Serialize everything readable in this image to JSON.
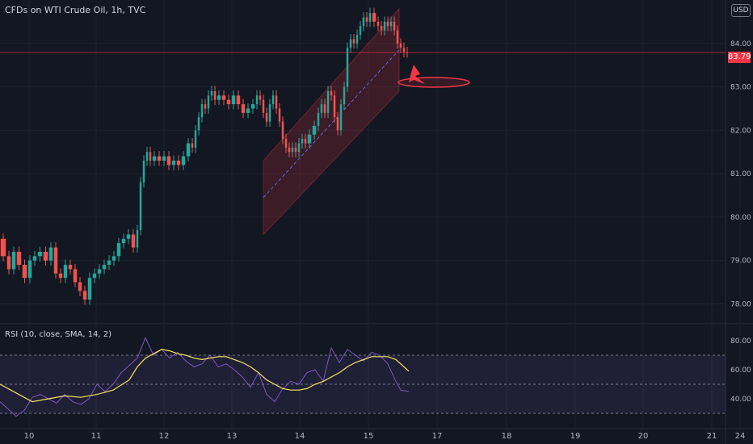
{
  "title": "CFDs on WTI Crude Oil, 1h, TVC",
  "currency": "USD",
  "last_price": "83.79",
  "rsi_label": "RSI (10, close, SMA, 14, 2)",
  "colors": {
    "background": "#131722",
    "up": "#26a69a",
    "down": "#ef5350",
    "rsi": "#7e57c2",
    "rsi_ma": "#f5e663",
    "grid": "#1e222d",
    "text": "#b2b5be",
    "accent": "#f23645"
  },
  "chart_data": [
    {
      "type": "candlestick",
      "ylim": [
        77.6,
        85.0
      ],
      "x_ticks": [
        "10",
        "11",
        "12",
        "13",
        "14",
        "15",
        "17",
        "18",
        "19",
        "20",
        "21",
        "24"
      ],
      "y_ticks": [
        "78.00",
        "79.00",
        "80.00",
        "81.00",
        "82.00",
        "83.00",
        "84.00"
      ],
      "last_price": 83.79,
      "path": [
        [
          0,
          79.5
        ],
        [
          8,
          79.1
        ],
        [
          14,
          78.8
        ],
        [
          20,
          79.2
        ],
        [
          27,
          78.9
        ],
        [
          34,
          78.6
        ],
        [
          40,
          79.0
        ],
        [
          46,
          79.1
        ],
        [
          53,
          79.2
        ],
        [
          60,
          79.0
        ],
        [
          66,
          79.3
        ],
        [
          72,
          78.7
        ],
        [
          78,
          78.6
        ],
        [
          84,
          78.9
        ],
        [
          90,
          78.8
        ],
        [
          96,
          78.5
        ],
        [
          102,
          78.3
        ],
        [
          108,
          78.1
        ],
        [
          114,
          78.6
        ],
        [
          120,
          78.7
        ],
        [
          126,
          78.8
        ],
        [
          132,
          78.9
        ],
        [
          138,
          79.0
        ],
        [
          144,
          79.1
        ],
        [
          150,
          79.4
        ],
        [
          156,
          79.5
        ],
        [
          162,
          79.6
        ],
        [
          168,
          79.3
        ],
        [
          172,
          79.7
        ],
        [
          176,
          80.8
        ],
        [
          180,
          81.3
        ],
        [
          184,
          81.5
        ],
        [
          188,
          81.3
        ],
        [
          194,
          81.4
        ],
        [
          200,
          81.3
        ],
        [
          206,
          81.4
        ],
        [
          212,
          81.2
        ],
        [
          218,
          81.3
        ],
        [
          224,
          81.2
        ],
        [
          230,
          81.4
        ],
        [
          236,
          81.7
        ],
        [
          240,
          81.6
        ],
        [
          244,
          82.0
        ],
        [
          248,
          82.3
        ],
        [
          252,
          82.6
        ],
        [
          256,
          82.5
        ],
        [
          260,
          82.8
        ],
        [
          264,
          82.9
        ],
        [
          268,
          82.7
        ],
        [
          274,
          82.8
        ],
        [
          280,
          82.7
        ],
        [
          286,
          82.6
        ],
        [
          292,
          82.8
        ],
        [
          298,
          82.6
        ],
        [
          304,
          82.4
        ],
        [
          310,
          82.5
        ],
        [
          316,
          82.6
        ],
        [
          320,
          82.8
        ],
        [
          324,
          82.7
        ],
        [
          328,
          82.4
        ],
        [
          332,
          82.2
        ],
        [
          336,
          82.6
        ],
        [
          340,
          82.8
        ],
        [
          344,
          82.5
        ],
        [
          348,
          82.2
        ],
        [
          352,
          81.8
        ],
        [
          356,
          81.6
        ],
        [
          360,
          81.5
        ],
        [
          364,
          81.6
        ],
        [
          368,
          81.5
        ],
        [
          372,
          81.7
        ],
        [
          376,
          81.8
        ],
        [
          380,
          81.7
        ],
        [
          386,
          81.9
        ],
        [
          392,
          82.1
        ],
        [
          396,
          82.4
        ],
        [
          400,
          82.6
        ],
        [
          404,
          82.4
        ],
        [
          408,
          82.9
        ],
        [
          412,
          82.8
        ],
        [
          416,
          82.3
        ],
        [
          420,
          82.0
        ],
        [
          424,
          82.6
        ],
        [
          428,
          83.0
        ],
        [
          432,
          83.9
        ],
        [
          436,
          84.1
        ],
        [
          440,
          84.0
        ],
        [
          444,
          84.2
        ],
        [
          448,
          84.4
        ],
        [
          452,
          84.6
        ],
        [
          456,
          84.5
        ],
        [
          460,
          84.7
        ],
        [
          466,
          84.5
        ],
        [
          470,
          84.4
        ],
        [
          474,
          84.3
        ],
        [
          478,
          84.5
        ],
        [
          482,
          84.4
        ],
        [
          486,
          84.5
        ],
        [
          490,
          84.3
        ],
        [
          494,
          84.0
        ],
        [
          498,
          83.9
        ],
        [
          502,
          83.8
        ],
        [
          506,
          83.79
        ]
      ]
    },
    {
      "type": "line",
      "name": "RSI",
      "ylim": [
        20,
        90
      ],
      "y_ticks": [
        "80.00",
        "60.00",
        "40.00"
      ],
      "levels": [
        70,
        50,
        30
      ],
      "rsi": [
        [
          0,
          38
        ],
        [
          10,
          33
        ],
        [
          20,
          28
        ],
        [
          30,
          32
        ],
        [
          40,
          41
        ],
        [
          50,
          43
        ],
        [
          60,
          40
        ],
        [
          70,
          37
        ],
        [
          80,
          43
        ],
        [
          90,
          38
        ],
        [
          100,
          36
        ],
        [
          110,
          40
        ],
        [
          120,
          50
        ],
        [
          130,
          45
        ],
        [
          140,
          50
        ],
        [
          150,
          58
        ],
        [
          160,
          63
        ],
        [
          170,
          68
        ],
        [
          180,
          82
        ],
        [
          190,
          70
        ],
        [
          200,
          74
        ],
        [
          210,
          68
        ],
        [
          220,
          72
        ],
        [
          230,
          66
        ],
        [
          240,
          62
        ],
        [
          250,
          64
        ],
        [
          260,
          70
        ],
        [
          270,
          62
        ],
        [
          280,
          64
        ],
        [
          290,
          60
        ],
        [
          300,
          55
        ],
        [
          310,
          48
        ],
        [
          320,
          58
        ],
        [
          330,
          43
        ],
        [
          340,
          38
        ],
        [
          350,
          47
        ],
        [
          360,
          52
        ],
        [
          370,
          50
        ],
        [
          380,
          58
        ],
        [
          390,
          60
        ],
        [
          400,
          52
        ],
        [
          410,
          75
        ],
        [
          420,
          65
        ],
        [
          430,
          74
        ],
        [
          440,
          70
        ],
        [
          450,
          66
        ],
        [
          460,
          72
        ],
        [
          470,
          70
        ],
        [
          480,
          64
        ],
        [
          490,
          52
        ],
        [
          496,
          46
        ],
        [
          506,
          45
        ]
      ],
      "ma": [
        [
          0,
          50
        ],
        [
          20,
          44
        ],
        [
          40,
          38
        ],
        [
          60,
          40
        ],
        [
          80,
          42
        ],
        [
          100,
          41
        ],
        [
          120,
          43
        ],
        [
          140,
          46
        ],
        [
          160,
          53
        ],
        [
          170,
          62
        ],
        [
          180,
          68
        ],
        [
          190,
          71
        ],
        [
          200,
          74
        ],
        [
          210,
          73
        ],
        [
          220,
          71
        ],
        [
          230,
          70
        ],
        [
          240,
          68
        ],
        [
          250,
          67
        ],
        [
          260,
          68
        ],
        [
          270,
          69
        ],
        [
          280,
          69
        ],
        [
          290,
          67
        ],
        [
          300,
          65
        ],
        [
          310,
          62
        ],
        [
          320,
          58
        ],
        [
          330,
          53
        ],
        [
          340,
          50
        ],
        [
          350,
          47
        ],
        [
          360,
          46
        ],
        [
          370,
          46
        ],
        [
          380,
          47
        ],
        [
          390,
          50
        ],
        [
          400,
          52
        ],
        [
          410,
          55
        ],
        [
          420,
          58
        ],
        [
          430,
          62
        ],
        [
          440,
          65
        ],
        [
          450,
          67
        ],
        [
          460,
          69
        ],
        [
          470,
          69
        ],
        [
          480,
          69
        ],
        [
          490,
          67
        ],
        [
          500,
          62
        ],
        [
          506,
          59
        ]
      ]
    }
  ]
}
